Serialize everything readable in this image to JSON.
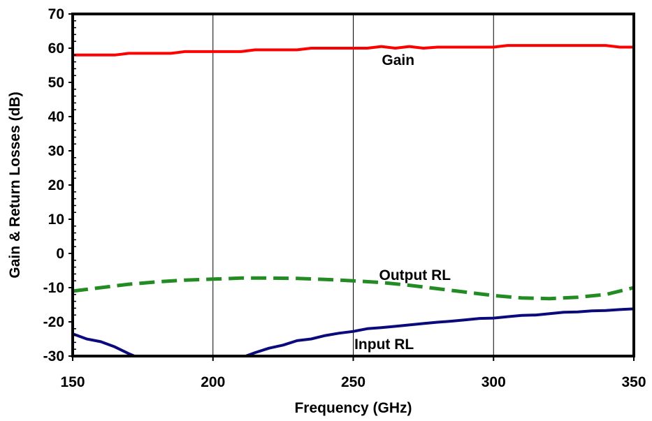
{
  "chart_data": {
    "type": "line",
    "title": "",
    "xlabel": "Frequency (GHz)",
    "ylabel": "Gain & Return Losses (dB)",
    "xlim": [
      150,
      350
    ],
    "ylim": [
      -30,
      70
    ],
    "xticks": [
      150,
      200,
      250,
      300,
      350
    ],
    "yticks": [
      -30,
      -20,
      -10,
      0,
      10,
      20,
      30,
      40,
      50,
      60,
      70
    ],
    "x_tick_labels": [
      "150",
      "200",
      "250",
      "300",
      "350"
    ],
    "y_tick_labels": [
      "-30",
      "-20",
      "-10",
      "0",
      "10",
      "20",
      "30",
      "40",
      "50",
      "60",
      "70"
    ],
    "grid": {
      "vertical": true,
      "horizontal": false
    },
    "legend": "none (series labelled directly on plot)",
    "series": [
      {
        "name": "Gain",
        "color": "#ff0000",
        "style": "solid",
        "x": [
          150,
          155,
          160,
          165,
          170,
          175,
          180,
          185,
          190,
          195,
          200,
          205,
          210,
          215,
          220,
          225,
          230,
          235,
          240,
          245,
          250,
          255,
          260,
          265,
          270,
          275,
          280,
          285,
          290,
          295,
          300,
          305,
          310,
          315,
          320,
          325,
          330,
          335,
          340,
          345,
          350
        ],
        "values": [
          58,
          58,
          58,
          58,
          58.5,
          58.5,
          58.5,
          58.5,
          59,
          59,
          59,
          59,
          59,
          59.5,
          59.5,
          59.5,
          59.5,
          60,
          60,
          60,
          60,
          60,
          60.5,
          60,
          60.5,
          60,
          60.3,
          60.3,
          60.3,
          60.3,
          60.3,
          60.8,
          60.8,
          60.8,
          60.8,
          60.8,
          60.8,
          60.8,
          60.8,
          60.3,
          60.3
        ]
      },
      {
        "name": "Output RL",
        "color": "#228b22",
        "style": "dashed",
        "x": [
          150,
          160,
          170,
          180,
          190,
          200,
          210,
          220,
          230,
          240,
          250,
          260,
          270,
          280,
          290,
          300,
          310,
          320,
          330,
          340,
          350
        ],
        "values": [
          -11,
          -10,
          -9,
          -8.3,
          -7.8,
          -7.5,
          -7.2,
          -7.2,
          -7.3,
          -7.6,
          -8,
          -8.5,
          -9.3,
          -10.3,
          -11.3,
          -12.3,
          -13,
          -13.2,
          -12.8,
          -12,
          -10
        ]
      },
      {
        "name": "Input RL",
        "color": "#0a0a7c",
        "style": "solid",
        "x": [
          150,
          155,
          160,
          165,
          170,
          175,
          180,
          190,
          200,
          210,
          215,
          220,
          225,
          230,
          235,
          240,
          245,
          250,
          255,
          260,
          265,
          270,
          275,
          280,
          285,
          290,
          295,
          300,
          305,
          310,
          315,
          320,
          325,
          330,
          335,
          340,
          345,
          350
        ],
        "values": [
          -23.5,
          -25,
          -25.8,
          -27.3,
          -29.3,
          -31,
          -32.5,
          -34,
          -34,
          -30.5,
          -29,
          -27.7,
          -26.8,
          -25.5,
          -25,
          -24,
          -23.3,
          -22.8,
          -22,
          -21.7,
          -21.3,
          -20.9,
          -20.5,
          -20.1,
          -19.8,
          -19.4,
          -19,
          -18.9,
          -18.5,
          -18.1,
          -18,
          -17.6,
          -17.2,
          -17.1,
          -16.8,
          -16.7,
          -16.4,
          -16.2
        ]
      }
    ],
    "annotations": [
      {
        "text": "Gain",
        "x": 266,
        "y": 56.5
      },
      {
        "text": "Output RL",
        "x": 272,
        "y": -6.3
      },
      {
        "text": "Input RL",
        "x": 261,
        "y": -26.5
      }
    ]
  }
}
